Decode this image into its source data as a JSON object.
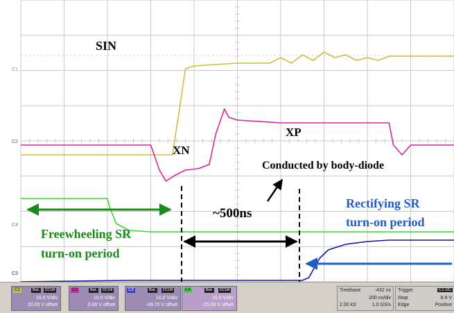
{
  "colors": {
    "grid": "#c8c8c8",
    "c1": "#c8c03a",
    "c2": "#d8249a",
    "c3": "#1414a0",
    "c4": "#38d830",
    "annotation_black": "#000000",
    "annotation_green": "#1a8a1a",
    "annotation_blue": "#1f5cc8"
  },
  "channel_markers": {
    "c1": "C1",
    "c2": "C2",
    "c3": "C3",
    "c4": "C4"
  },
  "annotations": {
    "sin": "SIN",
    "xn": "XN",
    "xp": "XP",
    "body_diode": "Conducted by body-diode",
    "time_gap": "~500ns",
    "freewheeling_line1": "Freewheeling SR",
    "freewheeling_line2": "turn-on period",
    "rectifying_line1": "Rectifying SR",
    "rectifying_line2": "turn-on period"
  },
  "channels": [
    {
      "id": "C1",
      "bw": "BwL",
      "coupling": "DC1M",
      "scale": "10.0 V/div",
      "offset": "20.00 V offset"
    },
    {
      "id": "C2",
      "bw": "BwL",
      "coupling": "DC1M",
      "scale": "10.0 V/div",
      "offset": "0.00 V offset"
    },
    {
      "id": "C3",
      "bw": "BwL",
      "coupling": "DC1M",
      "scale": "10.0 V/div",
      "offset": "-39.70 V offset"
    },
    {
      "id": "C4",
      "bw": "BwL",
      "coupling": "DC1M",
      "scale": "10.0 V/div",
      "offset": "-25.00 V offset"
    }
  ],
  "timebase": {
    "label": "Timebase",
    "delay": "-432 ns",
    "per_div": "200 ns/div",
    "samples": "2.00 kS",
    "rate": "1.0 GS/s"
  },
  "trigger": {
    "label": "Trigger",
    "badge": "C1 DC",
    "mode": "Stop",
    "level": "8.9 V",
    "type": "Edge",
    "slope": "Positive"
  },
  "chart_data": {
    "type": "line",
    "title": "",
    "xlabel": "",
    "ylabel": "",
    "x_unit": "ns",
    "time_per_div_ns": 200,
    "grid": true,
    "xlim": [
      -1000,
      1000
    ],
    "series": [
      {
        "name": "SIN",
        "channel": "C1",
        "x": [
          -1000,
          -300,
          -270,
          -240,
          -200,
          0,
          150,
          200,
          250,
          300,
          350,
          400,
          450,
          500,
          550,
          600,
          650,
          700,
          800,
          900,
          1000
        ],
        "y": [
          -3.0,
          -3.0,
          -1.5,
          0.1,
          0.2,
          0.3,
          0.3,
          0.5,
          0.3,
          0.6,
          0.4,
          0.7,
          0.5,
          0.6,
          0.4,
          0.5,
          0.4,
          0.55,
          0.55,
          0.55,
          0.55
        ]
      },
      {
        "name": "XN / XP",
        "channel": "C2",
        "x": [
          -1000,
          -400,
          -360,
          -330,
          -290,
          -240,
          -180,
          -130,
          -100,
          -60,
          -40,
          0,
          200,
          600,
          700,
          720,
          760,
          800,
          1000
        ],
        "y": [
          0,
          0,
          -0.9,
          -1.3,
          -1.1,
          -0.9,
          -0.85,
          -0.7,
          0.4,
          1.3,
          1.0,
          0.9,
          0.8,
          0.8,
          0.8,
          0.0,
          -0.35,
          0.0,
          0.0
        ]
      },
      {
        "name": "C3",
        "channel": "C3",
        "x": [
          -1000,
          -500,
          0,
          300,
          330,
          380,
          420,
          500,
          600,
          700,
          800,
          900,
          1000
        ],
        "y": [
          -0.05,
          0.0,
          0.0,
          0.0,
          0.1,
          0.8,
          1.1,
          1.3,
          1.4,
          1.45,
          1.45,
          1.45,
          1.45
        ]
      },
      {
        "name": "C4",
        "channel": "C4",
        "x": [
          -1000,
          -600,
          -590,
          -560,
          -500,
          -400,
          0,
          500,
          1000
        ],
        "y": [
          1.2,
          1.2,
          0.9,
          0.3,
          0.05,
          0.0,
          0.0,
          0.0,
          0.0
        ]
      }
    ]
  }
}
